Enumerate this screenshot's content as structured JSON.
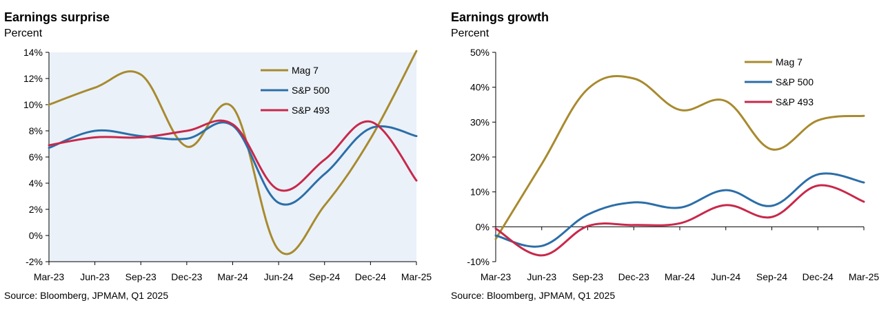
{
  "chart_data": [
    {
      "type": "line",
      "title": "Earnings surprise",
      "ylabel": "Percent",
      "source": "Source: Bloomberg, JPMAM, Q1 2025",
      "x": [
        "Mar-23",
        "Jun-23",
        "Sep-23",
        "Dec-23",
        "Mar-24",
        "Jun-24",
        "Sep-24",
        "Dec-24",
        "Mar-25"
      ],
      "ylim": [
        -2,
        14
      ],
      "yticks": [
        -2,
        0,
        2,
        4,
        6,
        8,
        10,
        12,
        14
      ],
      "ytick_labels": [
        "-2%",
        "0%",
        "2%",
        "4%",
        "6%",
        "8%",
        "10%",
        "12%",
        "14%"
      ],
      "grid": false,
      "legend_position": "top-right",
      "series": [
        {
          "name": "Mag 7",
          "color": "#a88a2e",
          "values": [
            10.0,
            11.3,
            12.3,
            6.8,
            9.8,
            -1.1,
            2.3,
            7.4,
            14.1
          ]
        },
        {
          "name": "S&P 500",
          "color": "#2c6ea8",
          "values": [
            6.7,
            8.0,
            7.6,
            7.4,
            8.4,
            2.5,
            4.7,
            8.2,
            7.6
          ]
        },
        {
          "name": "S&P 493",
          "color": "#c8284a",
          "values": [
            6.9,
            7.5,
            7.5,
            8.0,
            8.5,
            3.5,
            5.8,
            8.7,
            4.2
          ]
        }
      ]
    },
    {
      "type": "line",
      "title": "Earnings growth",
      "ylabel": "Percent",
      "source": "Source: Bloomberg, JPMAM, Q1 2025",
      "x": [
        "Mar-23",
        "Jun-23",
        "Sep-23",
        "Dec-23",
        "Mar-24",
        "Jun-24",
        "Sep-24",
        "Dec-24",
        "Mar-25"
      ],
      "ylim": [
        -10,
        50
      ],
      "yticks": [
        -10,
        0,
        10,
        20,
        30,
        40,
        50
      ],
      "ytick_labels": [
        "-10%",
        "0%",
        "10%",
        "20%",
        "30%",
        "40%",
        "50%"
      ],
      "grid": false,
      "legend_position": "top-right",
      "series": [
        {
          "name": "Mag 7",
          "color": "#a88a2e",
          "values": [
            -3.5,
            18.0,
            39.5,
            42.5,
            33.5,
            36.0,
            22.2,
            30.5,
            31.8
          ]
        },
        {
          "name": "S&P 500",
          "color": "#2c6ea8",
          "values": [
            -2.5,
            -5.5,
            3.5,
            7.0,
            5.5,
            10.5,
            6.0,
            15.0,
            12.7
          ]
        },
        {
          "name": "S&P 493",
          "color": "#c8284a",
          "values": [
            -0.5,
            -8.2,
            0.2,
            0.5,
            1.0,
            6.2,
            2.8,
            11.8,
            7.2
          ]
        }
      ]
    }
  ]
}
